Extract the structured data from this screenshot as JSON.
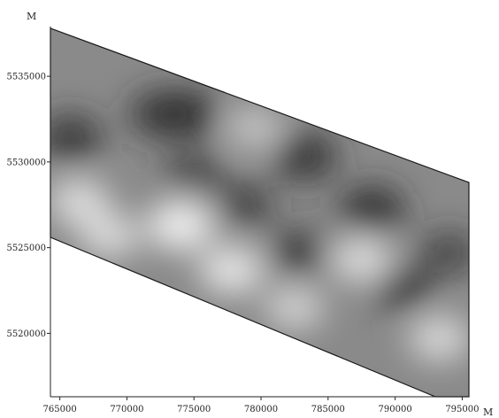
{
  "map": {
    "x_unit": "M",
    "y_unit": "M",
    "x_ticks": [
      {
        "value": 765000,
        "label": "765000"
      },
      {
        "value": 770000,
        "label": "770000"
      },
      {
        "value": 775000,
        "label": "775000"
      },
      {
        "value": 780000,
        "label": "780000"
      },
      {
        "value": 785000,
        "label": "785000"
      },
      {
        "value": 790000,
        "label": "790000"
      },
      {
        "value": 795000,
        "label": "795000"
      }
    ],
    "y_ticks": [
      {
        "value": 5535000,
        "label": "5535000"
      },
      {
        "value": 5530000,
        "label": "5530000"
      },
      {
        "value": 5525000,
        "label": "5525000"
      },
      {
        "value": 5520000,
        "label": "5520000"
      }
    ],
    "x_range": [
      764300,
      795500
    ],
    "y_range": [
      5516300,
      5537900
    ],
    "region": {
      "description": "surveyed strip",
      "vertices": [
        [
          764300,
          5537800
        ],
        [
          795500,
          5528800
        ],
        [
          795500,
          5516300
        ],
        [
          793000,
          5516300
        ],
        [
          764300,
          5525600
        ]
      ]
    },
    "field_colors": {
      "dark": "#2b2b2b",
      "mid": "#8a8a8a",
      "light": "#f4f4f4"
    },
    "anomalies": [
      {
        "x": 765800,
        "y": 5531400,
        "tone": "dark",
        "strength": 0.8
      },
      {
        "x": 772500,
        "y": 5532800,
        "tone": "dark",
        "strength": 0.75
      },
      {
        "x": 774300,
        "y": 5532800,
        "tone": "dark",
        "strength": 0.9
      },
      {
        "x": 775000,
        "y": 5529300,
        "tone": "dark",
        "strength": 0.55
      },
      {
        "x": 783300,
        "y": 5530300,
        "tone": "dark",
        "strength": 0.85
      },
      {
        "x": 778700,
        "y": 5527500,
        "tone": "dark",
        "strength": 0.6
      },
      {
        "x": 782800,
        "y": 5524700,
        "tone": "dark",
        "strength": 0.7
      },
      {
        "x": 788300,
        "y": 5527200,
        "tone": "dark",
        "strength": 0.9
      },
      {
        "x": 790500,
        "y": 5522700,
        "tone": "dark",
        "strength": 0.75
      },
      {
        "x": 794000,
        "y": 5524700,
        "tone": "dark",
        "strength": 0.55
      },
      {
        "x": 774000,
        "y": 5526300,
        "tone": "light",
        "strength": 1.0
      },
      {
        "x": 766400,
        "y": 5527700,
        "tone": "light",
        "strength": 0.7
      },
      {
        "x": 768700,
        "y": 5525700,
        "tone": "light",
        "strength": 0.65
      },
      {
        "x": 777800,
        "y": 5523700,
        "tone": "light",
        "strength": 0.85
      },
      {
        "x": 782500,
        "y": 5521500,
        "tone": "light",
        "strength": 0.55
      },
      {
        "x": 787500,
        "y": 5524300,
        "tone": "light",
        "strength": 0.7
      },
      {
        "x": 793300,
        "y": 5519700,
        "tone": "light",
        "strength": 0.65
      },
      {
        "x": 779500,
        "y": 5532000,
        "tone": "light",
        "strength": 0.35
      }
    ]
  }
}
